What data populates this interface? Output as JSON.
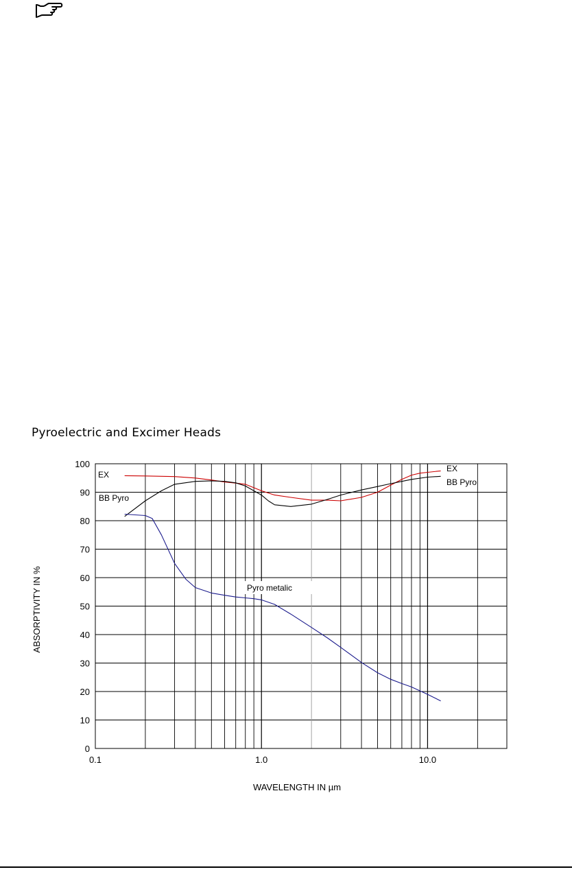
{
  "page": {
    "pointer_icon": "pointing-hand-icon",
    "section_title": "Pyroelectric and Excimer Heads"
  },
  "chart_data": {
    "type": "line",
    "title": "Pyroelectric and Excimer Heads",
    "xlabel": "WAVELENGTH IN µm",
    "ylabel": "ABSORPTIVITY IN %",
    "xscale": "log",
    "xlim": [
      0.1,
      30
    ],
    "ylim": [
      0,
      100
    ],
    "x_tick_labels": [
      {
        "value": 0.1,
        "label": "0.1"
      },
      {
        "value": 1.0,
        "label": "1.0"
      },
      {
        "value": 10.0,
        "label": "10.0"
      }
    ],
    "y_ticks": [
      0,
      10,
      20,
      30,
      40,
      50,
      60,
      70,
      80,
      90,
      100
    ],
    "grid": true,
    "series": [
      {
        "name": "EX",
        "color": "#cc0000",
        "x": [
          0.15,
          0.2,
          0.3,
          0.4,
          0.5,
          0.6,
          0.7,
          0.8,
          1.0,
          1.2,
          1.5,
          2.0,
          2.5,
          3.0,
          4.0,
          5.0,
          6.0,
          7.0,
          8.0,
          9.0,
          10.0,
          12.0
        ],
        "y": [
          95.8,
          95.7,
          95.5,
          95.0,
          94.3,
          93.6,
          93.2,
          92.8,
          90.5,
          89.0,
          88.2,
          87.2,
          87.2,
          87.0,
          88.2,
          90.0,
          92.5,
          94.5,
          96.0,
          96.7,
          97.0,
          97.5
        ]
      },
      {
        "name": "BB Pyro",
        "color": "#000000",
        "x": [
          0.15,
          0.2,
          0.25,
          0.3,
          0.4,
          0.5,
          0.6,
          0.7,
          0.8,
          0.9,
          1.0,
          1.1,
          1.2,
          1.5,
          2.0,
          2.5,
          3.0,
          4.0,
          5.0,
          6.0,
          7.0,
          8.0,
          10.0,
          12.0
        ],
        "y": [
          81.5,
          87.0,
          90.5,
          92.8,
          93.8,
          94.0,
          93.8,
          93.3,
          92.2,
          90.5,
          89.0,
          87.0,
          85.6,
          85.0,
          85.8,
          87.5,
          89.0,
          90.8,
          92.0,
          93.0,
          93.8,
          94.5,
          95.3,
          95.6
        ]
      },
      {
        "name": "Pyro metalic",
        "color": "#1a1a8c",
        "x": [
          0.15,
          0.2,
          0.22,
          0.25,
          0.3,
          0.35,
          0.4,
          0.5,
          0.6,
          0.7,
          0.8,
          0.9,
          1.0,
          1.2,
          1.5,
          2.0,
          2.5,
          3.0,
          4.0,
          5.0,
          6.0,
          7.0,
          8.0,
          10.0,
          12.0
        ],
        "y": [
          82.3,
          81.8,
          80.8,
          75.0,
          65.0,
          59.5,
          56.5,
          54.6,
          53.8,
          53.2,
          52.9,
          52.6,
          52.2,
          50.6,
          47.2,
          42.5,
          38.8,
          35.5,
          30.2,
          26.6,
          24.3,
          22.8,
          21.6,
          19.0,
          16.7
        ]
      }
    ],
    "annotations": [
      {
        "text": "EX",
        "series": "EX",
        "position": "left"
      },
      {
        "text": "BB Pyro",
        "series": "BB Pyro",
        "position": "left"
      },
      {
        "text": "EX",
        "series": "EX",
        "position": "right"
      },
      {
        "text": "BB Pyro",
        "series": "BB Pyro",
        "position": "right"
      },
      {
        "text": "Pyro metalic",
        "series": "Pyro metalic",
        "position": "middle"
      }
    ]
  }
}
